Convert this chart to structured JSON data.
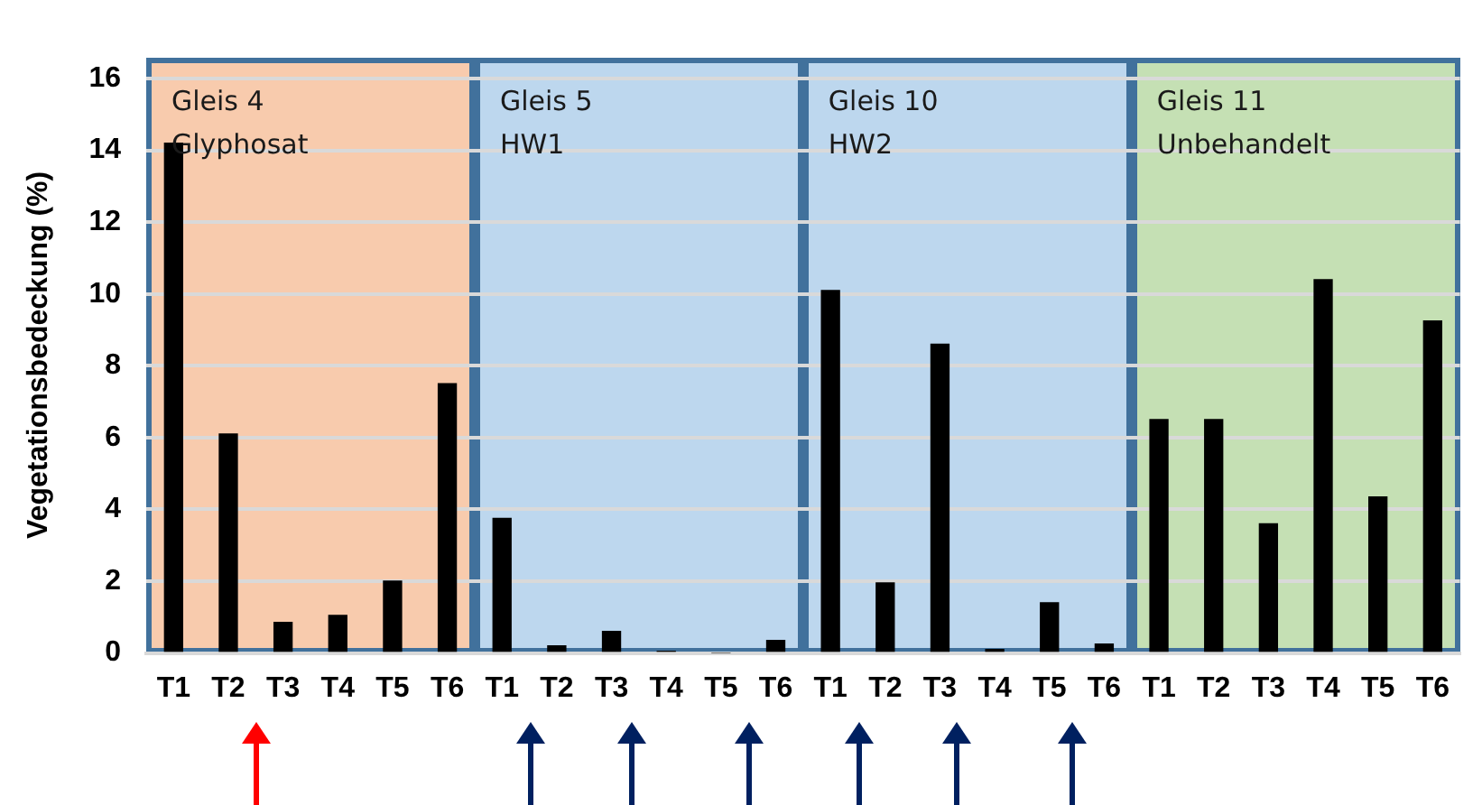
{
  "chart_data": {
    "type": "bar",
    "ylabel": "Vegetationsbedeckung (%)",
    "categories": [
      "T1",
      "T2",
      "T3",
      "T4",
      "T5",
      "T6",
      "T1",
      "T2",
      "T3",
      "T4",
      "T5",
      "T6",
      "T1",
      "T2",
      "T3",
      "T4",
      "T5",
      "T6",
      "T1",
      "T2",
      "T3",
      "T4",
      "T5",
      "T6"
    ],
    "values": [
      14.2,
      6.1,
      0.85,
      1.05,
      2.0,
      7.5,
      3.75,
      0.2,
      0.6,
      0.05,
      0,
      0.35,
      10.1,
      1.95,
      8.6,
      0.1,
      1.4,
      0.25,
      6.5,
      6.5,
      3.6,
      10.4,
      4.35,
      9.25
    ],
    "color": "#000000",
    "ylim": [
      0,
      16.6
    ],
    "yticks": [
      0,
      2,
      4,
      6,
      8,
      10,
      12,
      14,
      16
    ],
    "grid": "y",
    "annotations": [
      "Gleis 4\nGlyphosat",
      "Gleis 5\nHW1",
      "Gleis 10\nHW2",
      "Gleis 11\nUnbehandelt"
    ]
  }
}
